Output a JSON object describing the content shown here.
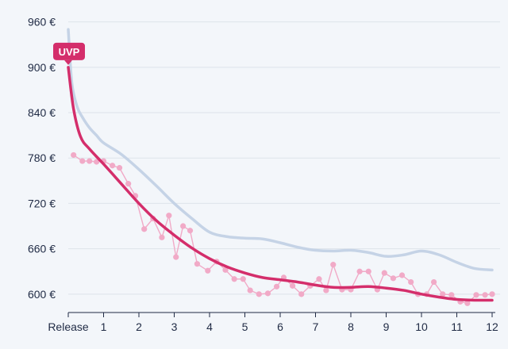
{
  "chart_data": {
    "type": "line",
    "title": "",
    "xlabel": "",
    "ylabel": "",
    "xlim": [
      0,
      12
    ],
    "ylim": [
      582,
      968
    ],
    "y_ticks": [
      600,
      660,
      720,
      780,
      840,
      900,
      960
    ],
    "y_tick_labels": [
      "600 €",
      "660 €",
      "720 €",
      "780 €",
      "840 €",
      "900 €",
      "960 €"
    ],
    "x_ticks": [
      0,
      1,
      2,
      3,
      4,
      5,
      6,
      7,
      8,
      9,
      10,
      11,
      12
    ],
    "x_tick_labels": [
      "Release",
      "1",
      "2",
      "3",
      "4",
      "5",
      "6",
      "7",
      "8",
      "9",
      "10",
      "11",
      "12"
    ],
    "grid": "horizontal",
    "annotation": {
      "text": "UVP",
      "x": 0,
      "y": 900
    },
    "series": [
      {
        "role": "upper-trend",
        "color": "#c5d3e6",
        "x": [
          0,
          0.1,
          0.25,
          0.4,
          0.6,
          0.8,
          1.0,
          1.5,
          2.0,
          2.5,
          3.0,
          3.5,
          4.0,
          4.5,
          5.0,
          5.5,
          6.0,
          6.5,
          7.0,
          7.5,
          8.0,
          8.5,
          9.0,
          9.5,
          10.0,
          10.5,
          11.0,
          11.5,
          12.0
        ],
        "y": [
          950,
          880,
          848,
          834,
          820,
          810,
          800,
          785,
          765,
          743,
          720,
          700,
          682,
          676,
          674,
          673,
          668,
          662,
          658,
          657,
          658,
          655,
          650,
          652,
          657,
          652,
          642,
          634,
          632
        ]
      },
      {
        "role": "average",
        "color": "#d42e6b",
        "x": [
          0,
          0.15,
          0.35,
          0.6,
          1.0,
          1.5,
          2.0,
          2.5,
          3.0,
          3.5,
          4.0,
          4.5,
          5.0,
          5.5,
          6.0,
          6.5,
          7.0,
          7.5,
          8.0,
          8.5,
          9.0,
          9.5,
          10.0,
          10.5,
          11.0,
          11.5,
          12.0
        ],
        "y": [
          900,
          845,
          808,
          792,
          772,
          746,
          720,
          697,
          678,
          661,
          647,
          636,
          628,
          622,
          619,
          616,
          612,
          609,
          609,
          610,
          608,
          605,
          600,
          596,
          593,
          592,
          592
        ]
      },
      {
        "role": "price-points",
        "color": "#f1aac7",
        "x": [
          0.15,
          0.4,
          0.6,
          0.8,
          1.0,
          1.25,
          1.45,
          1.7,
          1.9,
          2.15,
          2.4,
          2.65,
          2.85,
          3.05,
          3.25,
          3.45,
          3.65,
          3.95,
          4.2,
          4.45,
          4.7,
          4.95,
          5.15,
          5.4,
          5.65,
          5.9,
          6.1,
          6.35,
          6.6,
          6.85,
          7.1,
          7.3,
          7.5,
          7.75,
          8.0,
          8.25,
          8.5,
          8.75,
          8.95,
          9.2,
          9.45,
          9.7,
          9.9,
          10.15,
          10.35,
          10.6,
          10.85,
          11.1,
          11.3,
          11.55,
          11.8,
          12.0
        ],
        "y": [
          784,
          776,
          776,
          775,
          776,
          770,
          767,
          746,
          730,
          686,
          700,
          675,
          704,
          649,
          690,
          684,
          640,
          631,
          643,
          632,
          620,
          620,
          605,
          600,
          601,
          610,
          622,
          611,
          600,
          611,
          620,
          605,
          639,
          606,
          606,
          630,
          630,
          606,
          628,
          621,
          625,
          616,
          600,
          600,
          616,
          600,
          599,
          590,
          588,
          599,
          599,
          600
        ]
      }
    ]
  }
}
